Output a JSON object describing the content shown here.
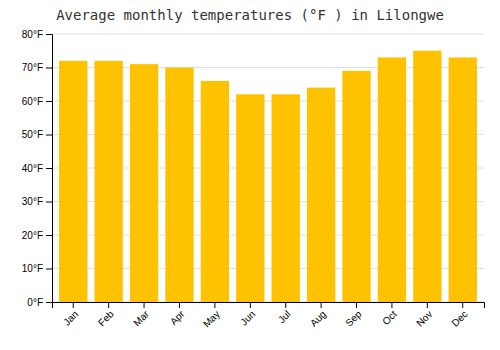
{
  "chart_data": {
    "type": "bar",
    "title": "Average monthly temperatures (°F ) in Lilongwe",
    "categories": [
      "Jan",
      "Feb",
      "Mar",
      "Apr",
      "May",
      "Jun",
      "Jul",
      "Aug",
      "Sep",
      "Oct",
      "Nov",
      "Dec"
    ],
    "values": [
      72,
      72,
      71,
      70,
      66,
      62,
      62,
      64,
      69,
      73,
      75,
      73
    ],
    "color": "#FFC200",
    "ylim": [
      0,
      80
    ],
    "yticks": [
      {
        "value": 0,
        "label": "0°F"
      },
      {
        "value": 10,
        "label": "10°F"
      },
      {
        "value": 20,
        "label": "20°F"
      },
      {
        "value": 30,
        "label": "30°F"
      },
      {
        "value": 40,
        "label": "40°F"
      },
      {
        "value": 50,
        "label": "50°F"
      },
      {
        "value": 60,
        "label": "60°F"
      },
      {
        "value": 70,
        "label": "70°F"
      },
      {
        "value": 80,
        "label": "80°F"
      }
    ],
    "grid": true
  }
}
